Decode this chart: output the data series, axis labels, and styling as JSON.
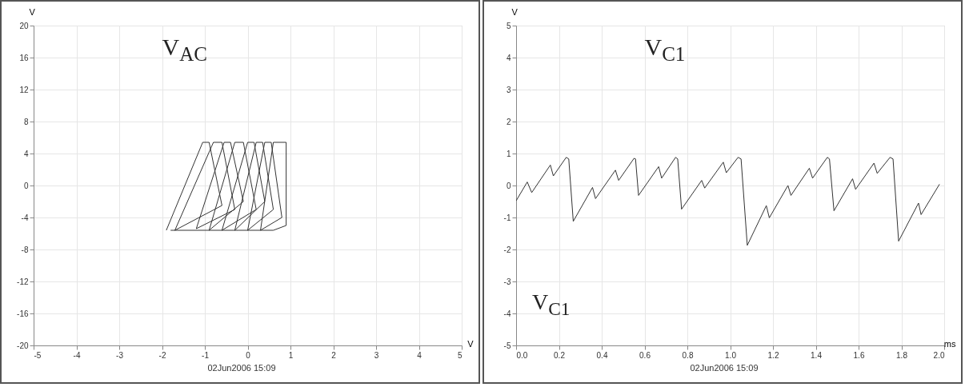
{
  "chart_data": [
    {
      "type": "line",
      "title": "V$_{AC}$",
      "xlabel": "V",
      "ylabel": "V",
      "annotations": [
        "02Jun2006 15:09"
      ],
      "x": [
        -1.9,
        -1.05,
        -0.9,
        -0.6,
        -1.7,
        -0.8,
        -0.6,
        -0.3,
        -1.2,
        -0.55,
        -0.4,
        -0.1,
        -0.9,
        -0.3,
        -0.1,
        0.2,
        -0.6,
        0.0,
        0.15,
        0.4,
        -0.3,
        0.2,
        0.35,
        0.6,
        0.0,
        0.4,
        0.55,
        0.8,
        0.3,
        0.6,
        0.9,
        0.9,
        0.6,
        -0.2,
        -1.8
      ],
      "series": [
        {
          "color": "#333333",
          "values": [
            -5.6,
            5.4,
            5.4,
            -2.5,
            -5.6,
            5.4,
            5.4,
            -3.0,
            -5.4,
            5.4,
            5.4,
            -2.0,
            -5.6,
            5.4,
            5.4,
            -3.0,
            -5.6,
            5.4,
            5.4,
            -2.0,
            -5.6,
            5.4,
            5.4,
            -3.0,
            -5.6,
            5.4,
            5.4,
            -4.0,
            -5.6,
            5.4,
            5.4,
            -5.0,
            -5.6,
            -5.6,
            -5.6
          ]
        }
      ],
      "xlim": [
        -5,
        5
      ],
      "xticks": [
        -5,
        -4,
        -3,
        -2,
        -1,
        0,
        1,
        2,
        3,
        4,
        5
      ],
      "ylim": [
        -20,
        20
      ],
      "yticks": [
        -20,
        -16,
        -12,
        -8,
        -4,
        0,
        4,
        8,
        12,
        16,
        20
      ],
      "grid": true
    },
    {
      "type": "line",
      "title": "V$_{C1}$",
      "xlabel": "ms",
      "ylabel": "V",
      "annotations": [
        "V$_{C1}$",
        "02Jun2006 15:09"
      ],
      "x": [
        0,
        0.052,
        0.073,
        0.16,
        0.174,
        0.234,
        0.246,
        0.267,
        0.357,
        0.371,
        0.464,
        0.479,
        0.551,
        0.558,
        0.572,
        0.666,
        0.68,
        0.745,
        0.755,
        0.773,
        0.867,
        0.881,
        0.968,
        0.982,
        1.037,
        1.051,
        1.08,
        1.169,
        1.183,
        1.27,
        1.284,
        1.37,
        1.385,
        1.454,
        1.464,
        1.485,
        1.572,
        1.586,
        1.672,
        1.687,
        1.747,
        1.761,
        1.787,
        1.88,
        1.892,
        1.978
      ],
      "series": [
        {
          "color": "#333333",
          "values": [
            -0.48,
            0.11,
            -0.22,
            0.64,
            0.3,
            0.88,
            0.83,
            -1.12,
            -0.06,
            -0.41,
            0.48,
            0.16,
            0.85,
            0.83,
            -0.31,
            0.59,
            0.23,
            0.88,
            0.83,
            -0.74,
            0.16,
            -0.08,
            0.73,
            0.4,
            0.88,
            0.83,
            -1.87,
            -0.63,
            -1.01,
            0.0,
            -0.31,
            0.54,
            0.23,
            0.88,
            0.83,
            -0.79,
            0.21,
            -0.12,
            0.7,
            0.38,
            0.88,
            0.83,
            -1.74,
            -0.55,
            -0.91,
            0.04
          ]
        }
      ],
      "xlim": [
        0,
        2
      ],
      "xticks": [
        {
          "value": 0,
          "label": "0.0"
        },
        0.2,
        0.4,
        0.6,
        0.8,
        {
          "value": 1,
          "label": "1.0"
        },
        1.2,
        1.4,
        1.6,
        1.8,
        {
          "value": 2,
          "label": "2.0"
        }
      ],
      "ylim": [
        -5,
        5
      ],
      "yticks": [
        -5,
        -4,
        -3,
        -2,
        -1,
        0,
        1,
        2,
        3,
        4,
        5
      ],
      "grid": true
    }
  ]
}
